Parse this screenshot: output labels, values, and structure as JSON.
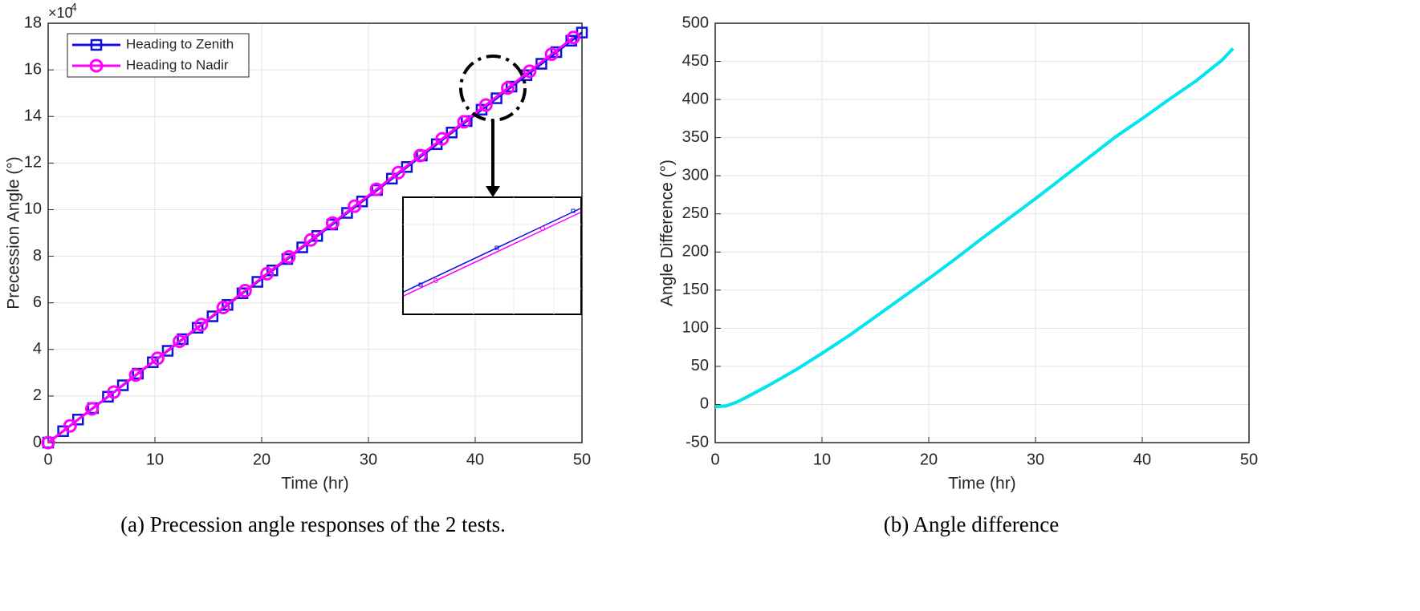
{
  "chart_data": [
    {
      "type": "line",
      "x_label": "Time (hr)",
      "y_label": "Precession Angle (°)",
      "y_multiplier": "×10",
      "y_multiplier_exponent": "4",
      "caption": "(a)  Precession angle responses of the 2 tests.",
      "xlim": [
        0,
        50
      ],
      "ylim": [
        0,
        18
      ],
      "xticks": [
        0,
        10,
        20,
        30,
        40,
        50
      ],
      "yticks": [
        0,
        2,
        4,
        6,
        8,
        10,
        12,
        14,
        16,
        18
      ],
      "grid": true,
      "legend": "upper left",
      "series": [
        {
          "name": "Heading to Zenith",
          "color": "#1010e0",
          "marker": "square",
          "x": [
            0,
            1.4,
            2.8,
            4.2,
            5.6,
            7,
            8.4,
            9.8,
            11.2,
            12.6,
            14,
            15.4,
            16.8,
            18.2,
            19.6,
            21,
            22.4,
            23.8,
            25.2,
            26.6,
            28,
            29.4,
            30.8,
            32.2,
            33.6,
            35,
            36.4,
            37.8,
            39.2,
            40.6,
            42,
            43.4,
            44.8,
            46.2,
            47.6,
            49,
            50
          ],
          "values": [
            0,
            0.49,
            0.99,
            1.48,
            1.97,
            2.46,
            2.96,
            3.45,
            3.94,
            4.44,
            4.93,
            5.42,
            5.91,
            6.41,
            6.9,
            7.39,
            7.88,
            8.38,
            8.87,
            9.36,
            9.86,
            10.35,
            10.84,
            11.33,
            11.83,
            12.32,
            12.81,
            13.31,
            13.8,
            14.29,
            14.78,
            15.28,
            15.77,
            16.26,
            16.76,
            17.25,
            17.6
          ]
        },
        {
          "name": "Heading to Nadir",
          "color": "#ff00ff",
          "marker": "circle",
          "x": [
            0,
            2.05,
            4.1,
            6.15,
            8.2,
            10.25,
            12.3,
            14.35,
            16.4,
            18.45,
            20.5,
            22.55,
            24.6,
            26.65,
            28.7,
            30.75,
            32.8,
            34.85,
            36.9,
            38.95,
            41,
            43.05,
            45.1,
            47.15,
            49.2
          ],
          "values": [
            0,
            0.72,
            1.45,
            2.17,
            2.9,
            3.62,
            4.35,
            5.07,
            5.8,
            6.52,
            7.25,
            7.97,
            8.7,
            9.42,
            10.15,
            10.87,
            11.59,
            12.32,
            13.04,
            13.77,
            14.49,
            15.22,
            15.94,
            16.67,
            17.39
          ]
        }
      ]
    },
    {
      "type": "line",
      "x_label": "Time (hr)",
      "y_label": "Angle Difference (°)",
      "caption": "(b)  Angle difference",
      "xlim": [
        0,
        50
      ],
      "ylim": [
        -50,
        500
      ],
      "xticks": [
        0,
        10,
        20,
        30,
        40,
        50
      ],
      "yticks": [
        -50,
        0,
        50,
        100,
        150,
        200,
        250,
        300,
        350,
        400,
        450,
        500
      ],
      "grid": true,
      "series": [
        {
          "color": "#00e5ee",
          "x": [
            0,
            1,
            2,
            3,
            5,
            7.5,
            10,
            12.5,
            15,
            17.5,
            20,
            22.5,
            25,
            27.5,
            30,
            32.5,
            35,
            37.5,
            40,
            42.5,
            45,
            47.5,
            48.5
          ],
          "values": [
            -3,
            -2,
            3,
            10,
            25,
            45,
            67,
            90,
            115,
            140,
            165,
            191,
            218,
            244,
            270,
            297,
            324,
            351,
            375,
            400,
            424,
            452,
            467
          ]
        }
      ]
    }
  ]
}
